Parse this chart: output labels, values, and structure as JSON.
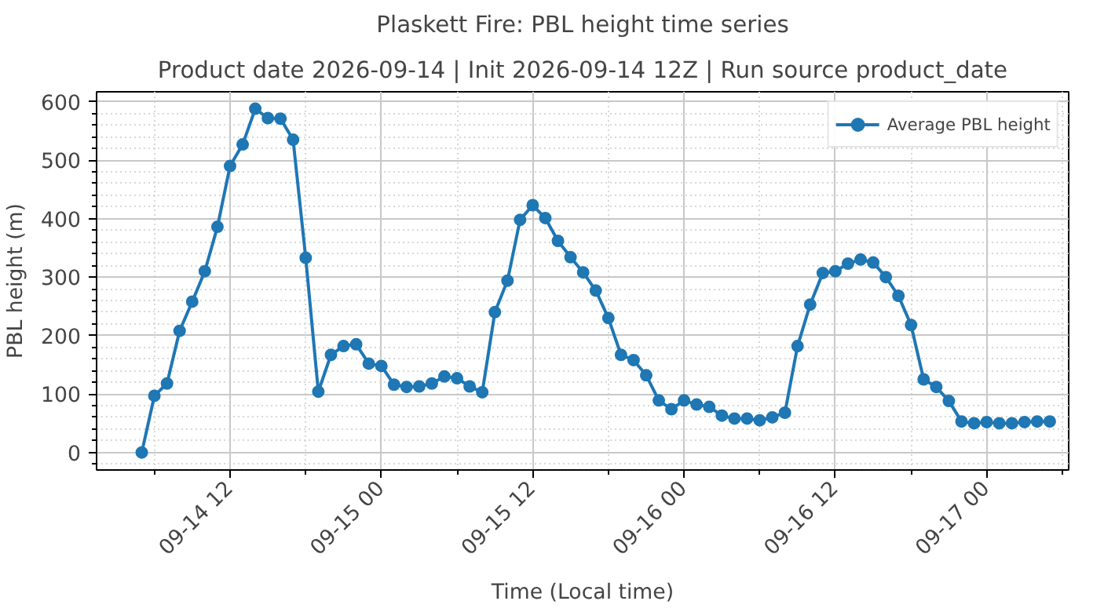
{
  "chart_data": {
    "type": "line",
    "title": "Plaskett Fire: PBL height time series",
    "subtitle": "Product date 2026-09-14 | Init 2026-09-14 12Z | Run source product_date",
    "xlabel": "Time (Local time)",
    "ylabel": "PBL height (m)",
    "x": [
      "2026-09-14T05:00",
      "2026-09-14T06:00",
      "2026-09-14T07:00",
      "2026-09-14T08:00",
      "2026-09-14T09:00",
      "2026-09-14T10:00",
      "2026-09-14T11:00",
      "2026-09-14T12:00",
      "2026-09-14T13:00",
      "2026-09-14T14:00",
      "2026-09-14T15:00",
      "2026-09-14T16:00",
      "2026-09-14T17:00",
      "2026-09-14T18:00",
      "2026-09-14T19:00",
      "2026-09-14T20:00",
      "2026-09-14T21:00",
      "2026-09-14T22:00",
      "2026-09-14T23:00",
      "2026-09-15T00:00",
      "2026-09-15T01:00",
      "2026-09-15T02:00",
      "2026-09-15T03:00",
      "2026-09-15T04:00",
      "2026-09-15T05:00",
      "2026-09-15T06:00",
      "2026-09-15T07:00",
      "2026-09-15T08:00",
      "2026-09-15T09:00",
      "2026-09-15T10:00",
      "2026-09-15T11:00",
      "2026-09-15T12:00",
      "2026-09-15T13:00",
      "2026-09-15T14:00",
      "2026-09-15T15:00",
      "2026-09-15T16:00",
      "2026-09-15T17:00",
      "2026-09-15T18:00",
      "2026-09-15T19:00",
      "2026-09-15T20:00",
      "2026-09-15T21:00",
      "2026-09-15T22:00",
      "2026-09-15T23:00",
      "2026-09-16T00:00",
      "2026-09-16T01:00",
      "2026-09-16T02:00",
      "2026-09-16T03:00",
      "2026-09-16T04:00",
      "2026-09-16T05:00",
      "2026-09-16T06:00",
      "2026-09-16T07:00",
      "2026-09-16T08:00",
      "2026-09-16T09:00",
      "2026-09-16T10:00",
      "2026-09-16T11:00",
      "2026-09-16T12:00",
      "2026-09-16T13:00",
      "2026-09-16T14:00",
      "2026-09-16T15:00",
      "2026-09-16T16:00",
      "2026-09-16T17:00",
      "2026-09-16T18:00",
      "2026-09-16T19:00",
      "2026-09-16T20:00",
      "2026-09-16T21:00",
      "2026-09-16T22:00",
      "2026-09-16T23:00",
      "2026-09-17T00:00",
      "2026-09-17T01:00",
      "2026-09-17T02:00",
      "2026-09-17T03:00",
      "2026-09-17T04:00",
      "2026-09-17T05:00"
    ],
    "series": [
      {
        "name": "Average PBL height",
        "color": "#1f77b4",
        "values": [
          0,
          97,
          118,
          208,
          258,
          310,
          386,
          490,
          527,
          588,
          572,
          571,
          535,
          333,
          104,
          167,
          182,
          185,
          152,
          148,
          116,
          112,
          113,
          118,
          130,
          127,
          113,
          103,
          240,
          294,
          398,
          423,
          401,
          362,
          334,
          308,
          277,
          230,
          167,
          158,
          132,
          89,
          74,
          89,
          82,
          78,
          63,
          58,
          58,
          55,
          60,
          68,
          182,
          253,
          307,
          310,
          323,
          330,
          325,
          300,
          268,
          218,
          125,
          112,
          88,
          53,
          50,
          52,
          50,
          50,
          52,
          53,
          53
        ]
      }
    ],
    "xlim": [
      "2026-09-14T01:25",
      "2026-09-17T06:30"
    ],
    "xticks": [
      {
        "value": "2026-09-14T06:00",
        "label": null
      },
      {
        "value": "2026-09-14T12:00",
        "label": "09-14 12"
      },
      {
        "value": "2026-09-14T18:00",
        "label": null
      },
      {
        "value": "2026-09-15T00:00",
        "label": "09-15 00"
      },
      {
        "value": "2026-09-15T06:00",
        "label": null
      },
      {
        "value": "2026-09-15T12:00",
        "label": "09-15 12"
      },
      {
        "value": "2026-09-15T18:00",
        "label": null
      },
      {
        "value": "2026-09-16T00:00",
        "label": "09-16 00"
      },
      {
        "value": "2026-09-16T06:00",
        "label": null
      },
      {
        "value": "2026-09-16T12:00",
        "label": "09-16 12"
      },
      {
        "value": "2026-09-16T18:00",
        "label": null
      },
      {
        "value": "2026-09-17T00:00",
        "label": "09-17 00"
      },
      {
        "value": "2026-09-17T06:00",
        "label": null
      }
    ],
    "ylim": [
      -30,
      617
    ],
    "yticks": [
      {
        "value": -20,
        "label": null
      },
      0,
      {
        "value": 20,
        "label": null
      },
      {
        "value": 40,
        "label": null
      },
      {
        "value": 60,
        "label": null
      },
      {
        "value": 80,
        "label": null
      },
      100,
      {
        "value": 120,
        "label": null
      },
      {
        "value": 140,
        "label": null
      },
      {
        "value": 160,
        "label": null
      },
      {
        "value": 180,
        "label": null
      },
      200,
      {
        "value": 220,
        "label": null
      },
      {
        "value": 240,
        "label": null
      },
      {
        "value": 260,
        "label": null
      },
      {
        "value": 280,
        "label": null
      },
      300,
      {
        "value": 320,
        "label": null
      },
      {
        "value": 340,
        "label": null
      },
      {
        "value": 360,
        "label": null
      },
      {
        "value": 380,
        "label": null
      },
      400,
      {
        "value": 420,
        "label": null
      },
      {
        "value": 440,
        "label": null
      },
      {
        "value": 460,
        "label": null
      },
      {
        "value": 480,
        "label": null
      },
      500,
      {
        "value": 520,
        "label": null
      },
      {
        "value": 540,
        "label": null
      },
      {
        "value": 560,
        "label": null
      },
      {
        "value": 580,
        "label": null
      },
      600
    ],
    "grid": true,
    "legend": "top right",
    "marker": "circle",
    "line_style": "solid"
  }
}
